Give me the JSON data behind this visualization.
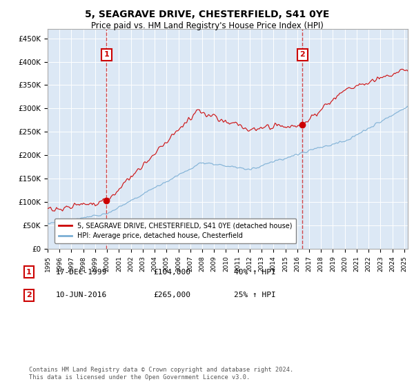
{
  "title": "5, SEAGRAVE DRIVE, CHESTERFIELD, S41 0YE",
  "subtitle": "Price paid vs. HM Land Registry's House Price Index (HPI)",
  "ylabel_ticks": [
    "£0",
    "£50K",
    "£100K",
    "£150K",
    "£200K",
    "£250K",
    "£300K",
    "£350K",
    "£400K",
    "£450K"
  ],
  "ytick_values": [
    0,
    50000,
    100000,
    150000,
    200000,
    250000,
    300000,
    350000,
    400000,
    450000
  ],
  "ylim": [
    0,
    470000
  ],
  "xlim_start": 1995.0,
  "xlim_end": 2025.3,
  "plot_bg": "#dce8f5",
  "red_color": "#cc0000",
  "blue_color": "#7aaed4",
  "marker1_x": 1999.96,
  "marker1_y": 104000,
  "marker2_x": 2016.44,
  "marker2_y": 265000,
  "legend_line1": "5, SEAGRAVE DRIVE, CHESTERFIELD, S41 0YE (detached house)",
  "legend_line2": "HPI: Average price, detached house, Chesterfield",
  "table_row1": [
    "1",
    "17-DEC-1999",
    "£104,000",
    "40% ↑ HPI"
  ],
  "table_row2": [
    "2",
    "10-JUN-2016",
    "£265,000",
    "25% ↑ HPI"
  ],
  "footer": "Contains HM Land Registry data © Crown copyright and database right 2024.\nThis data is licensed under the Open Government Licence v3.0."
}
